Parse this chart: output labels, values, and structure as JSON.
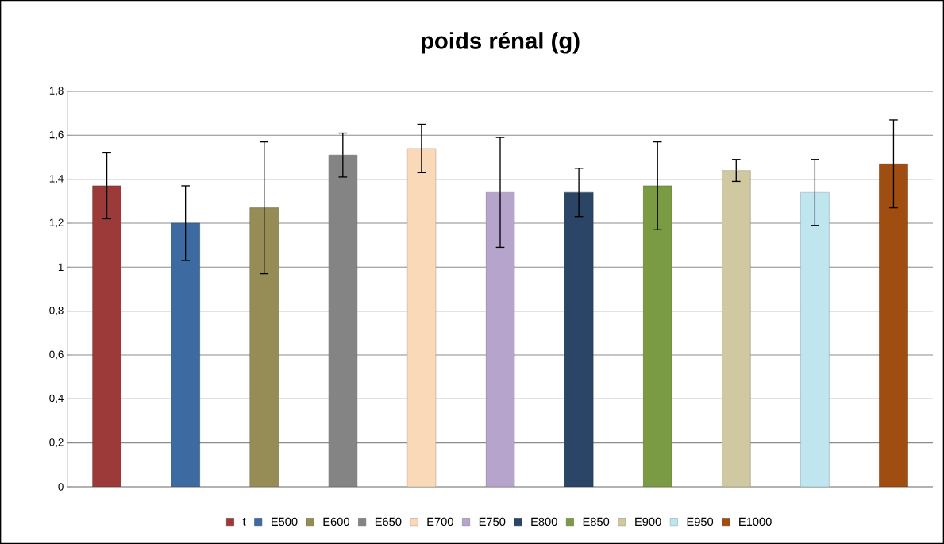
{
  "chart_data": {
    "type": "bar",
    "title": "poids rénal (g)",
    "categories": [
      null
    ],
    "series": [
      {
        "name": "t",
        "color": "#9b3a38",
        "values": [
          1.37
        ],
        "errors": [
          0.15
        ]
      },
      {
        "name": "E500",
        "color": "#3d6aa0",
        "values": [
          1.2
        ],
        "errors": [
          0.17
        ]
      },
      {
        "name": "E600",
        "color": "#968d56",
        "values": [
          1.27
        ],
        "errors": [
          0.3
        ]
      },
      {
        "name": "E650",
        "color": "#848484",
        "values": [
          1.51
        ],
        "errors": [
          0.1
        ]
      },
      {
        "name": "E700",
        "color": "#fad9b8",
        "values": [
          1.54
        ],
        "errors": [
          0.11
        ]
      },
      {
        "name": "E750",
        "color": "#b7a4cc",
        "values": [
          1.34
        ],
        "errors": [
          0.25
        ]
      },
      {
        "name": "E800",
        "color": "#2a4565",
        "values": [
          1.34
        ],
        "errors": [
          0.11
        ]
      },
      {
        "name": "E850",
        "color": "#7a9a43",
        "values": [
          1.37
        ],
        "errors": [
          0.2
        ]
      },
      {
        "name": "E900",
        "color": "#d0c8a0",
        "values": [
          1.44
        ],
        "errors": [
          0.05
        ]
      },
      {
        "name": "E950",
        "color": "#bfe6ef",
        "values": [
          1.34
        ],
        "errors": [
          0.15
        ]
      },
      {
        "name": "E1000",
        "color": "#a04d12",
        "values": [
          1.47
        ],
        "errors": [
          0.2
        ]
      }
    ],
    "ylim": [
      0,
      1.8
    ],
    "yticks": [
      0,
      {
        "value": 0.2,
        "label": "0,2"
      },
      {
        "value": 0.4,
        "label": "0,4"
      },
      {
        "value": 0.6,
        "label": "0,6"
      },
      {
        "value": 0.8,
        "label": "0,8"
      },
      1,
      {
        "value": 1.2,
        "label": "1,2"
      },
      {
        "value": 1.4,
        "label": "1,4"
      },
      {
        "value": 1.6,
        "label": "1,6"
      },
      {
        "value": 1.8,
        "label": "1,8"
      }
    ],
    "grid": "y",
    "legend": "bottom"
  }
}
